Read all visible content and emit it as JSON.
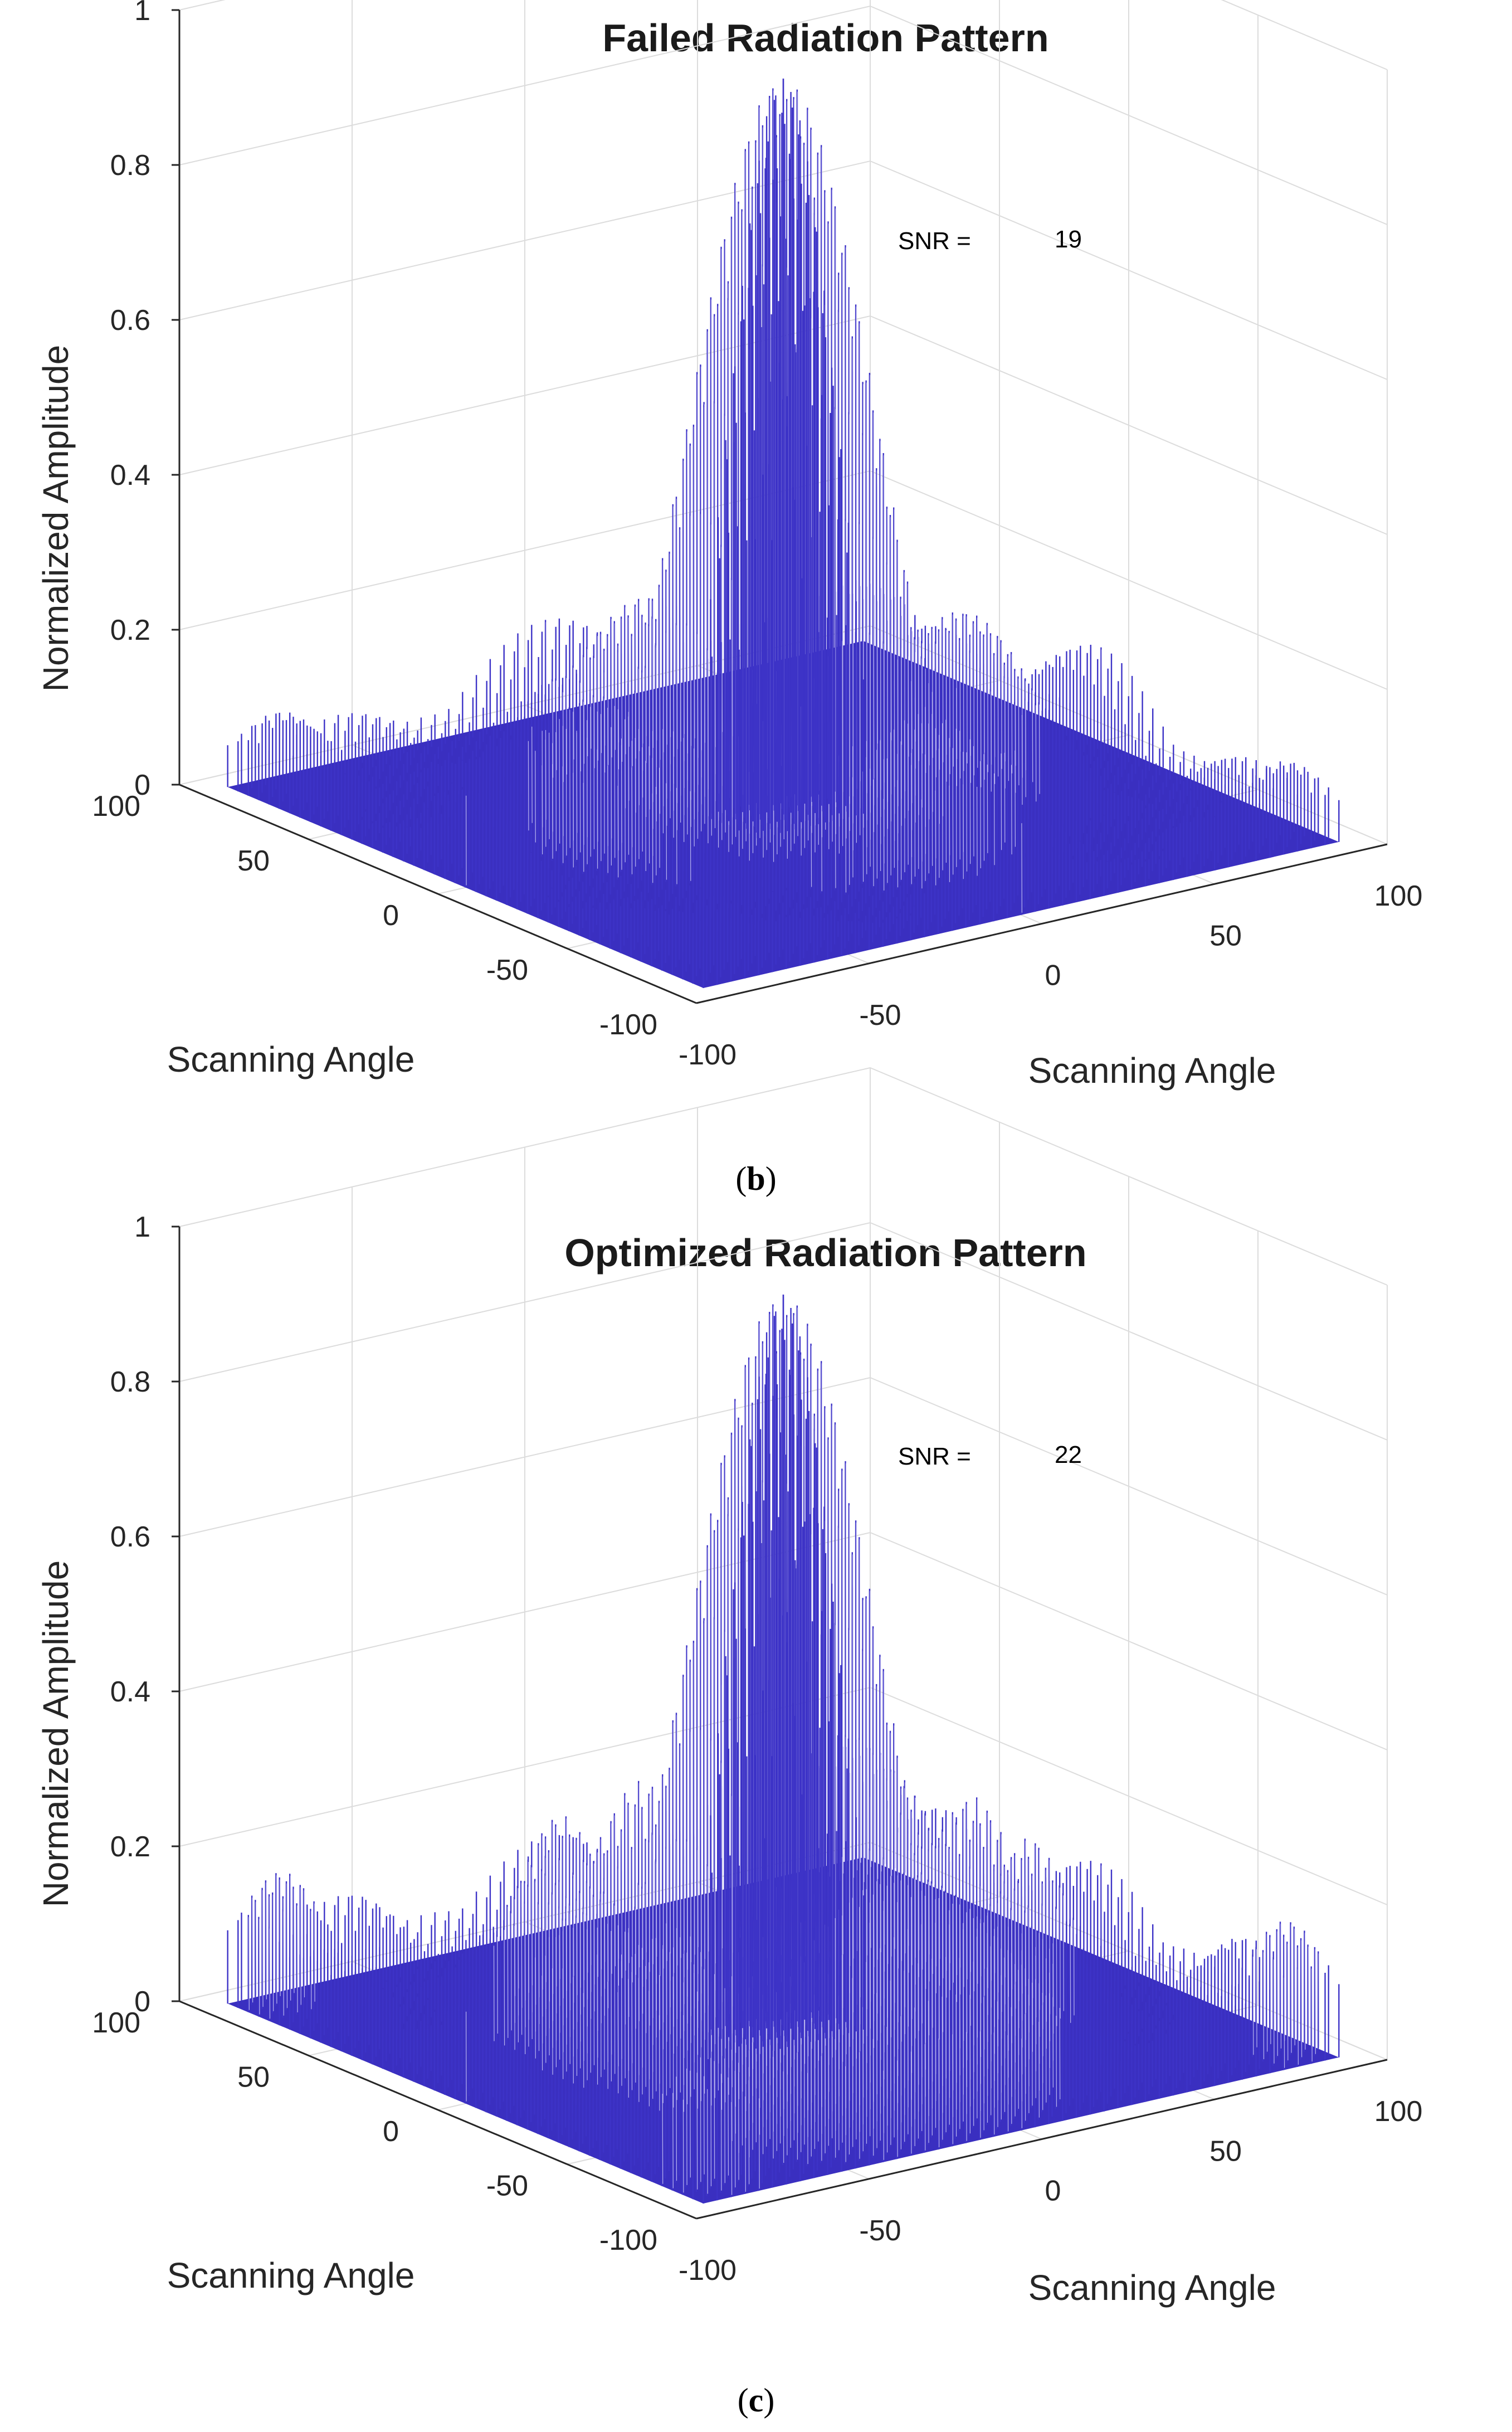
{
  "chart_data": [
    {
      "type": "surface",
      "title": "Failed Radiation Pattern",
      "zlabel": "Normalized Amplitude",
      "xlabel": "Scanning Angle",
      "ylabel": "Scanning Angle",
      "zlim": [
        0,
        1
      ],
      "z_ticks": [
        "0",
        "0.2",
        "0.4",
        "0.6",
        "0.8",
        "1"
      ],
      "x_ticks": [
        "-100",
        "-50",
        "0",
        "50",
        "100"
      ],
      "y_ticks": [
        "100",
        "50",
        "0",
        "-50",
        "-100"
      ],
      "x_range": [
        -100,
        100
      ],
      "y_range": [
        -100,
        100
      ],
      "main_peak": 0.95,
      "sidelobe_level": 0.2,
      "annotation": {
        "label": "SNR =",
        "value": "19"
      },
      "caption": "(b)"
    },
    {
      "type": "surface",
      "title": "Optimized Radiation Pattern",
      "zlabel": "Normalized Amplitude",
      "xlabel": "Scanning Angle",
      "ylabel": "Scanning Angle",
      "zlim": [
        0,
        1
      ],
      "z_ticks": [
        "0",
        "0.2",
        "0.4",
        "0.6",
        "0.8",
        "1"
      ],
      "x_ticks": [
        "-100",
        "-50",
        "0",
        "50",
        "100"
      ],
      "y_ticks": [
        "100",
        "50",
        "0",
        "-50",
        "-100"
      ],
      "x_range": [
        -100,
        100
      ],
      "y_range": [
        -100,
        100
      ],
      "main_peak": 0.95,
      "sidelobe_level": 0.35,
      "annotation": {
        "label": "SNR =",
        "value": "22"
      },
      "caption": "(c)"
    }
  ],
  "colors": {
    "surface": "#3d33c7",
    "highlight": "#b7b3ee",
    "grid": "#dcdcdc",
    "axis": "#262626"
  }
}
